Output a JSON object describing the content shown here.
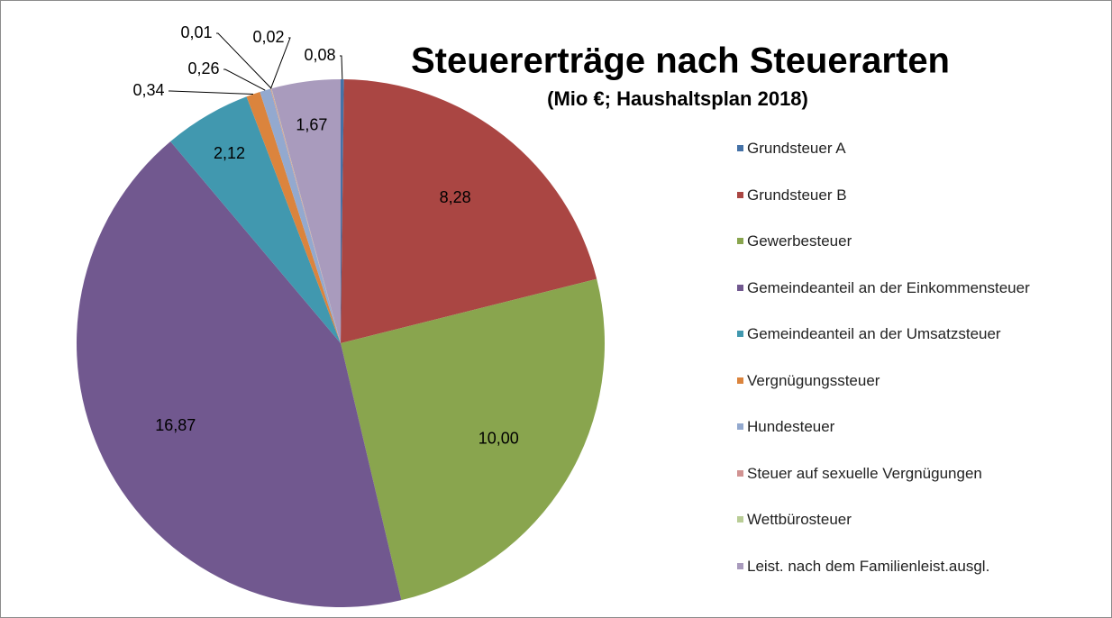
{
  "chart_data": {
    "type": "pie",
    "title": "Steuererträge nach Steuerarten",
    "subtitle": "(Mio  €; Haushaltsplan 2018)",
    "categories": [
      "Grundsteuer A",
      "Grundsteuer B",
      "Gewerbesteuer",
      "Gemeindeanteil an der Einkommensteuer",
      "Gemeindeanteil an der Umsatzsteuer",
      "Vergnügungssteuer",
      "Hundesteuer",
      "Steuer auf sexuelle Vergnügungen",
      "Wettbürosteuer",
      "Leist. nach dem Familienleist.ausgl."
    ],
    "values": [
      0.08,
      8.28,
      10.0,
      16.87,
      2.12,
      0.34,
      0.26,
      0.02,
      0.01,
      1.67
    ],
    "value_labels": [
      "0,08",
      "8,28",
      "10,00",
      "16,87",
      "2,12",
      "0,34",
      "0,26",
      "0,02",
      "0,01",
      "1,67"
    ],
    "colors": [
      "#4572a7",
      "#aa4643",
      "#89a54e",
      "#71588f",
      "#4198af",
      "#db843d",
      "#93a9cf",
      "#d19392",
      "#b9cd96",
      "#a99bbd"
    ],
    "legend": "right"
  }
}
